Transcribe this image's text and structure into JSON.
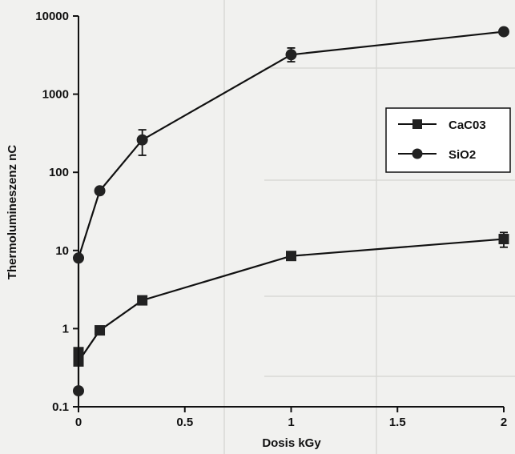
{
  "chart_data": {
    "type": "line",
    "title": "",
    "xlabel": "Dosis kGy",
    "ylabel": "Thermolumineszenz  nC",
    "xlim": [
      0,
      2
    ],
    "ylim": [
      0.1,
      10000
    ],
    "yscale": "log",
    "grid": false,
    "legend_position": "right",
    "xticks": [
      0,
      0.5,
      1,
      1.5,
      2
    ],
    "xtick_labels": [
      "0",
      "0.5",
      "1",
      "1.5",
      "2"
    ],
    "yticks": [
      0.1,
      1,
      10,
      100,
      1000,
      10000
    ],
    "ytick_labels": [
      "0.1",
      "1",
      "10",
      "100",
      "1000",
      "10000"
    ],
    "series": [
      {
        "name": "CaC03",
        "marker": "square",
        "points": [
          {
            "x": 0,
            "y": 0.5,
            "err_low": 0.45,
            "err_high": 0.55
          },
          {
            "x": 0,
            "y": 0.38
          },
          {
            "x": 0.1,
            "y": 0.95
          },
          {
            "x": 0.3,
            "y": 2.3
          },
          {
            "x": 1,
            "y": 8.5
          },
          {
            "x": 2,
            "y": 14,
            "err_low": 11,
            "err_high": 17
          }
        ]
      },
      {
        "name": "SiO2",
        "marker": "circle",
        "points": [
          {
            "x": 0,
            "y": 0.16
          },
          {
            "x": 0,
            "y": 8
          },
          {
            "x": 0.1,
            "y": 58
          },
          {
            "x": 0.3,
            "y": 260,
            "err_low": 165,
            "err_high": 350
          },
          {
            "x": 1,
            "y": 3200,
            "err_low": 2600,
            "err_high": 3900
          },
          {
            "x": 2,
            "y": 6300
          }
        ]
      }
    ]
  }
}
